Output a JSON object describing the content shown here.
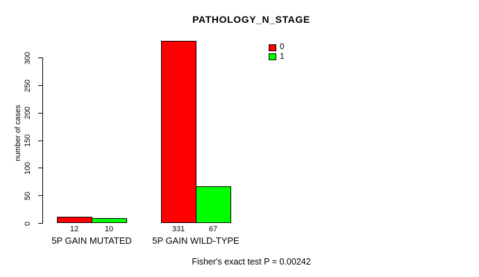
{
  "title": "PATHOLOGY_N_STAGE",
  "footer": "Fisher's exact test P = 0.00242",
  "chart_data": {
    "type": "bar",
    "title": "PATHOLOGY_N_STAGE",
    "xlabel": "",
    "ylabel": "number of cases",
    "categories": [
      "5P GAIN MUTATED",
      "5P GAIN WILD-TYPE"
    ],
    "series": [
      {
        "name": "0",
        "color": "#FF0000",
        "values": [
          12,
          331
        ]
      },
      {
        "name": "1",
        "color": "#00FF00",
        "values": [
          10,
          67
        ]
      }
    ],
    "bar_value_labels": [
      [
        "12",
        "10"
      ],
      [
        "331",
        "67"
      ]
    ],
    "yticks": [
      0,
      50,
      100,
      150,
      200,
      250,
      300
    ],
    "ylim": [
      0,
      331
    ],
    "grid": false,
    "legend_position": "top-right",
    "annotation": "Fisher's exact test P = 0.00242"
  }
}
